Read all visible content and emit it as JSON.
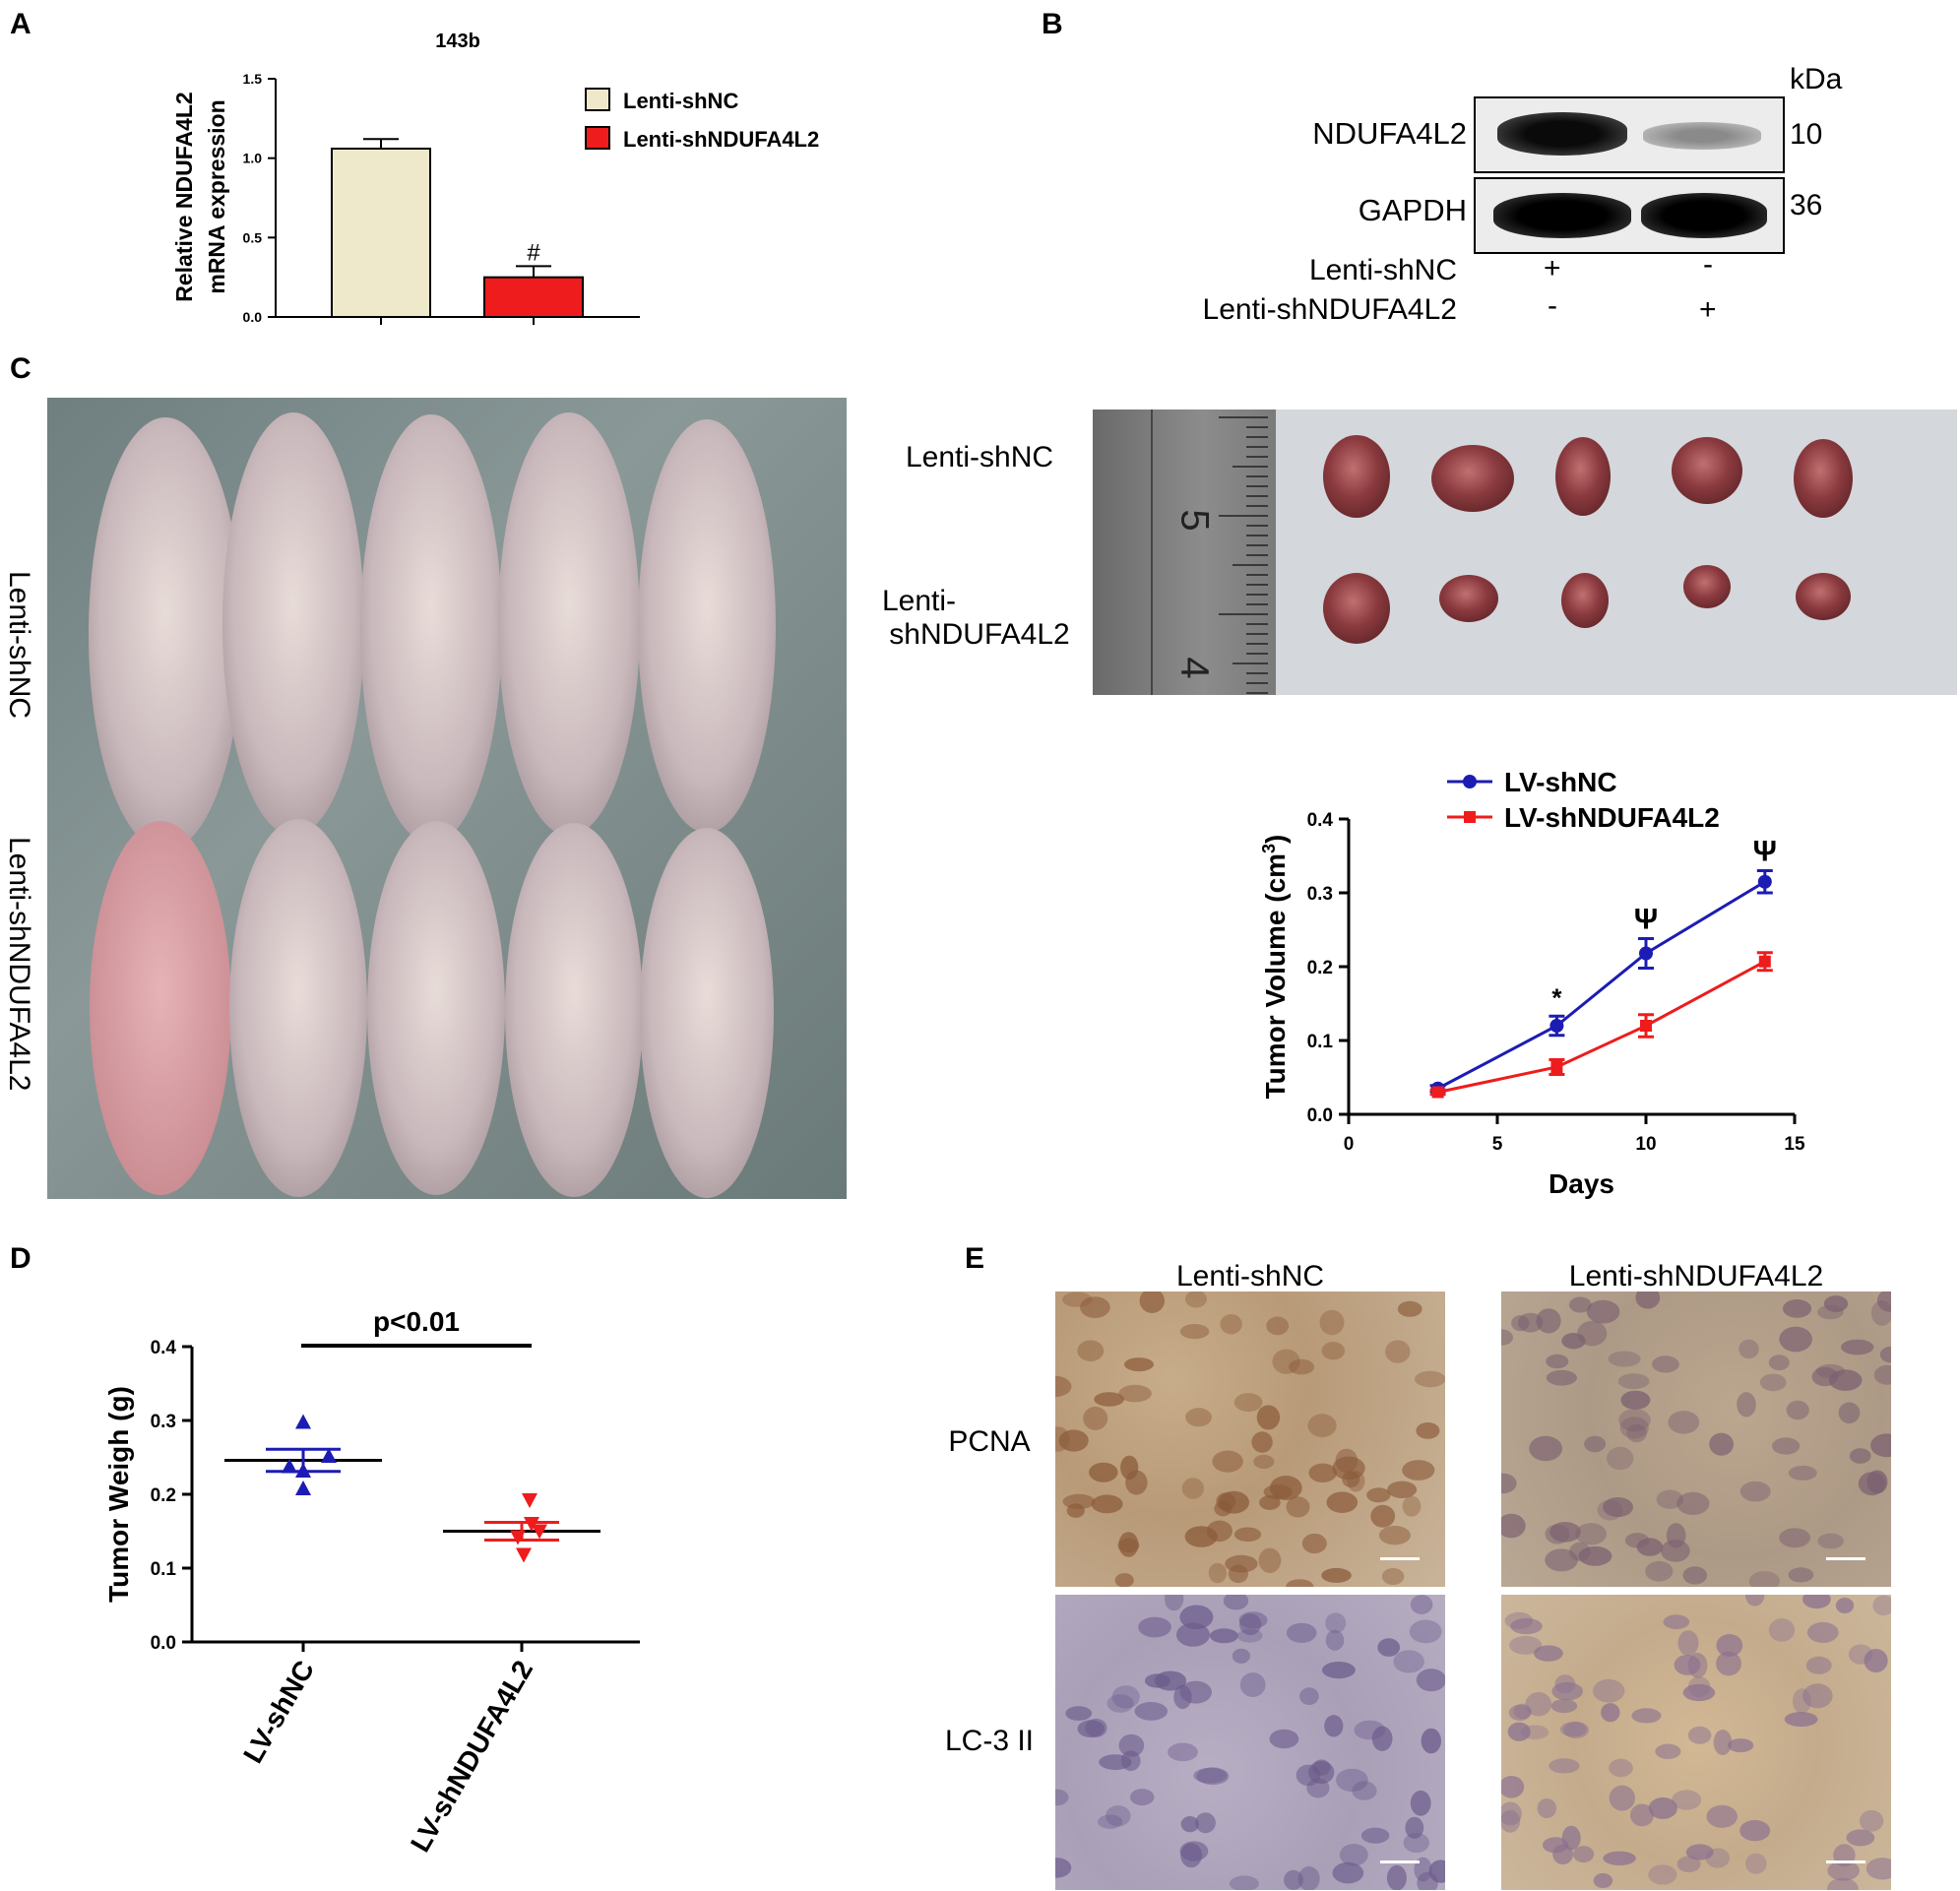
{
  "panels": {
    "a": "A",
    "b": "B",
    "c": "C",
    "d": "D",
    "e": "E"
  },
  "panel_a": {
    "title": "143b",
    "ylabel_line1": "Relative NDUFA4L2",
    "ylabel_line2": "mRNA expression",
    "yticks": [
      "0.0",
      "0.5",
      "1.0",
      "1.5"
    ],
    "legend": [
      "Lenti-shNC",
      "Lenti-shNDUFA4L2"
    ],
    "significance": "#",
    "colors": {
      "shNC": "#efe9cc",
      "shNDUFA4L2": "#ee1c1c"
    }
  },
  "panel_b": {
    "kda": "kDa",
    "proteins": [
      "NDUFA4L2",
      "GAPDH"
    ],
    "sizes": [
      "10",
      "36"
    ],
    "rows": [
      {
        "label": "Lenti-shNC",
        "lane1": "+",
        "lane2": "-"
      },
      {
        "label": "Lenti-shNDUFA4L2",
        "lane1": "-",
        "lane2": "+"
      }
    ]
  },
  "panel_c": {
    "mice_label_top": "Lenti-shNC",
    "mice_label_bottom": "Lenti-shNDUFA4L2",
    "tumor_label_top": "Lenti-shNC",
    "tumor_label_bottom_1": "Lenti-",
    "tumor_label_bottom_2": "shNDUFA4L2",
    "ruler_marks": [
      "5",
      "4"
    ]
  },
  "panel_e": {
    "col_labels": [
      "Lenti-shNC",
      "Lenti-shNDUFA4L2"
    ],
    "row_labels": [
      "PCNA",
      "LC-3 II"
    ]
  },
  "chart_data": [
    {
      "id": "A",
      "type": "bar",
      "title": "143b",
      "categories": [
        "Lenti-shNC",
        "Lenti-shNDUFA4L2"
      ],
      "values": [
        1.06,
        0.25
      ],
      "errors": [
        0.06,
        0.07
      ],
      "ylabel": "Relative NDUFA4L2 mRNA expression",
      "ylim": [
        0,
        1.5
      ],
      "annotations": [
        {
          "category": "Lenti-shNDUFA4L2",
          "text": "#"
        }
      ],
      "legend": "top-right"
    },
    {
      "id": "C",
      "type": "line",
      "xlabel": "Days",
      "ylabel": "Tumor Volume (cm3)",
      "xlim": [
        0,
        15
      ],
      "ylim": [
        0,
        0.4
      ],
      "xticks": [
        "0",
        "5",
        "10",
        "15"
      ],
      "yticks": [
        "0.0",
        "0.1",
        "0.2",
        "0.3",
        "0.4"
      ],
      "x": [
        3,
        7,
        10,
        14
      ],
      "series": [
        {
          "name": "LV-shNC",
          "color": "#1c1cb4",
          "values": [
            0.035,
            0.12,
            0.218,
            0.315
          ],
          "errors": [
            0.004,
            0.013,
            0.02,
            0.015
          ]
        },
        {
          "name": "LV-shNDUFA4L2",
          "color": "#ee1c1c",
          "values": [
            0.03,
            0.064,
            0.12,
            0.207
          ],
          "errors": [
            0.003,
            0.01,
            0.015,
            0.012
          ]
        }
      ],
      "annotations": [
        {
          "x": 7,
          "text": "*"
        },
        {
          "x": 10,
          "text": "Ψ"
        },
        {
          "x": 14,
          "text": "Ψ"
        }
      ],
      "legend": "top"
    },
    {
      "id": "D",
      "type": "scatter",
      "ylabel": "Tumor Weigh (g)",
      "ylim": [
        0,
        0.4
      ],
      "yticks": [
        "0.0",
        "0.1",
        "0.2",
        "0.3",
        "0.4"
      ],
      "categories": [
        "LV-shNC",
        "LV-shNDUFA4L2"
      ],
      "series": [
        {
          "name": "LV-shNC",
          "color": "#1c1cb4",
          "marker": "triangle-up",
          "points": [
            0.298,
            0.252,
            0.238,
            0.232,
            0.208
          ],
          "mean": 0.246,
          "sem": 0.015
        },
        {
          "name": "LV-shNDUFA4L2",
          "color": "#ee1c1c",
          "marker": "triangle-down",
          "points": [
            0.192,
            0.16,
            0.15,
            0.142,
            0.118
          ],
          "mean": 0.15,
          "sem": 0.012
        }
      ],
      "significance": "p<0.01"
    }
  ]
}
